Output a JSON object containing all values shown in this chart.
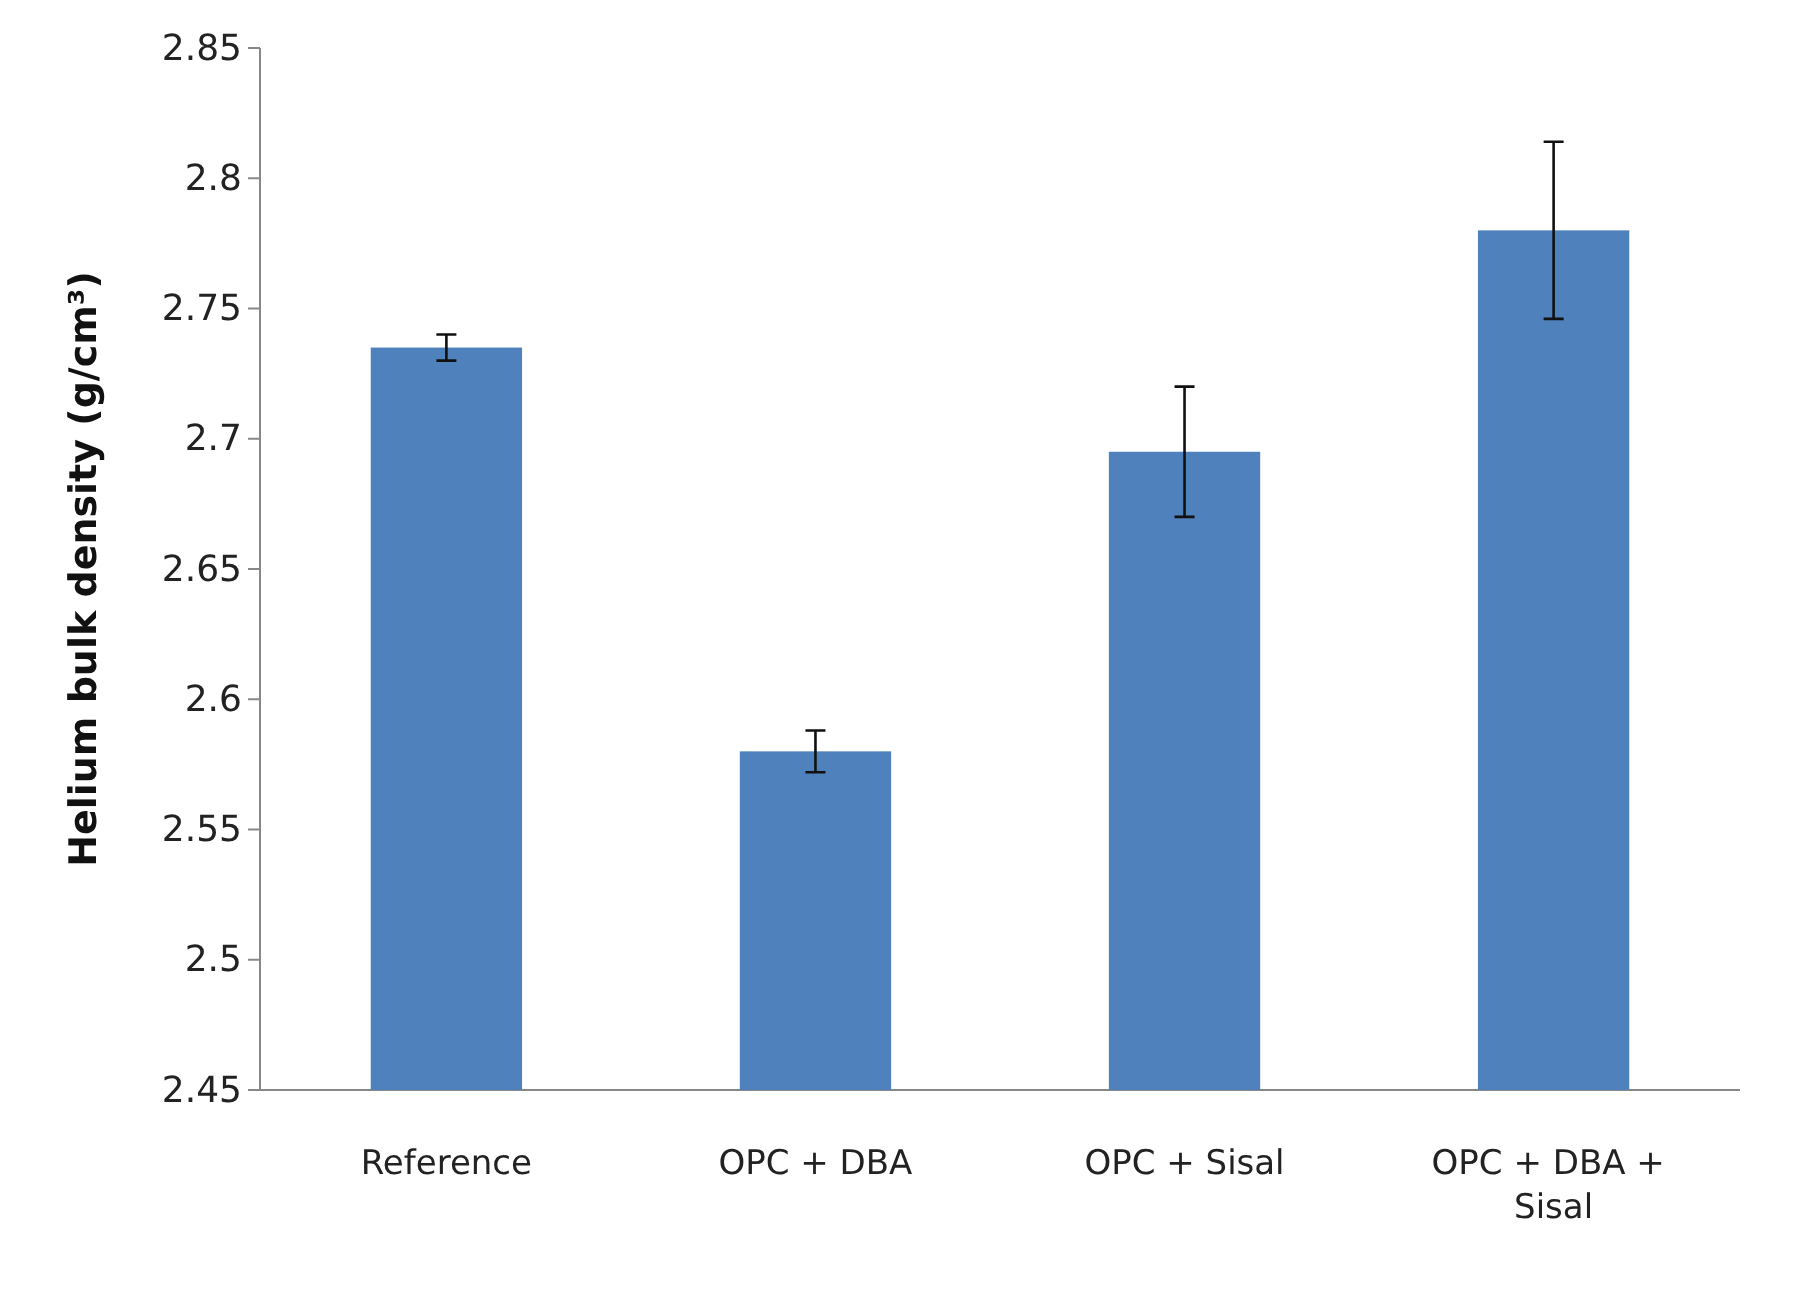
{
  "chart_data": {
    "type": "bar",
    "ylabel": "Helium bulk density (g/cm³)",
    "categories": [
      "Reference",
      "OPC + DBA",
      "OPC + Sisal",
      "OPC + DBA + Sisal"
    ],
    "values": [
      2.735,
      2.58,
      2.695,
      2.78
    ],
    "errors": [
      0.005,
      0.008,
      0.025,
      0.034
    ],
    "color": "#4f81bd",
    "ylim": [
      2.45,
      2.85
    ],
    "yticks": [
      2.45,
      2.5,
      2.55,
      2.6,
      2.65,
      2.7,
      2.75,
      2.8,
      2.85
    ],
    "grid": false
  }
}
